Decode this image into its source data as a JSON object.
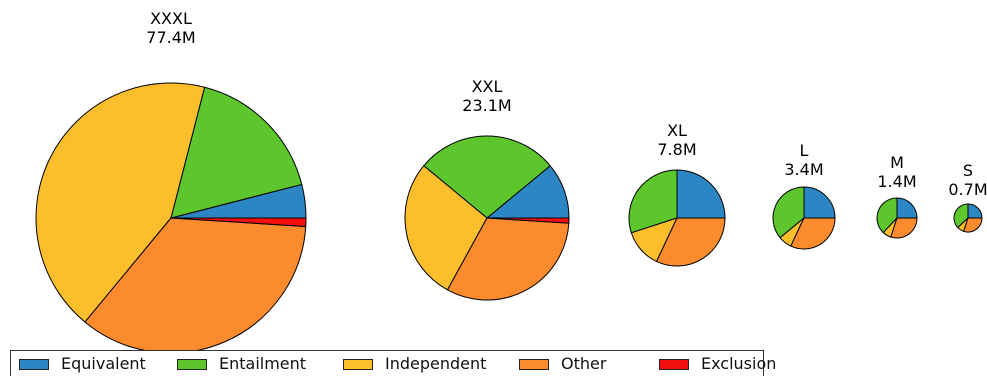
{
  "chart_data": {
    "type": "pie",
    "category_names": [
      "Equivalent",
      "Entailment",
      "Independent",
      "Other",
      "Exclusion"
    ],
    "colors": [
      "#2b86c3",
      "#5cc62c",
      "#fcbf2b",
      "#fb8b2c",
      "#f40f0f"
    ],
    "pies": [
      {
        "name": "XXXL",
        "total_label": "77.4M",
        "shares": [
          0.04,
          0.17,
          0.43,
          0.35,
          0.01
        ]
      },
      {
        "name": "XXL",
        "total_label": "23.1M",
        "shares": [
          0.11,
          0.28,
          0.28,
          0.32,
          0.01
        ]
      },
      {
        "name": "XL",
        "total_label": "7.8M",
        "shares": [
          0.25,
          0.3,
          0.13,
          0.32,
          0.0
        ]
      },
      {
        "name": "L",
        "total_label": "3.4M",
        "shares": [
          0.25,
          0.36,
          0.07,
          0.32,
          0.0
        ]
      },
      {
        "name": "M",
        "total_label": "1.4M",
        "shares": [
          0.25,
          0.38,
          0.07,
          0.3,
          0.0
        ]
      },
      {
        "name": "S",
        "total_label": "0.7M",
        "shares": [
          0.25,
          0.37,
          0.08,
          0.3,
          0.0
        ]
      }
    ]
  }
}
